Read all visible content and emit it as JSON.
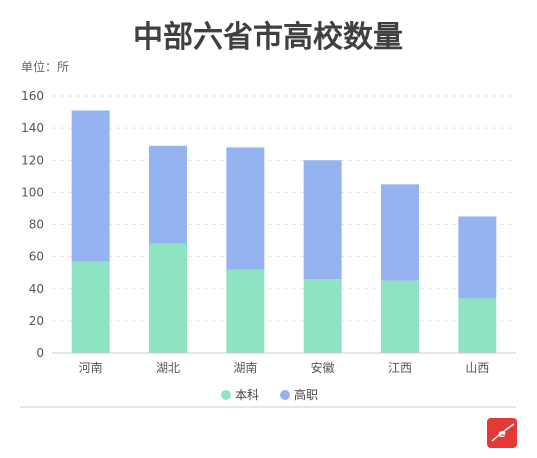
{
  "chart_data": {
    "type": "bar",
    "stacked": true,
    "title": "中部六省市高校数量",
    "unit_label": "单位：所",
    "categories": [
      "河南",
      "湖北",
      "湖南",
      "安徽",
      "江西",
      "山西"
    ],
    "series": [
      {
        "name": "本科",
        "color": "#8ee3c3",
        "values": [
          57,
          68,
          52,
          46,
          45,
          34
        ]
      },
      {
        "name": "高职",
        "color": "#94b3ef",
        "values": [
          94,
          61,
          76,
          74,
          60,
          51
        ]
      }
    ],
    "ylim": [
      0,
      160
    ],
    "yticks": [
      0,
      20,
      40,
      60,
      80,
      100,
      120,
      140,
      160
    ],
    "grid": true,
    "legend_position": "bottom",
    "logo_color": "#e53935"
  }
}
